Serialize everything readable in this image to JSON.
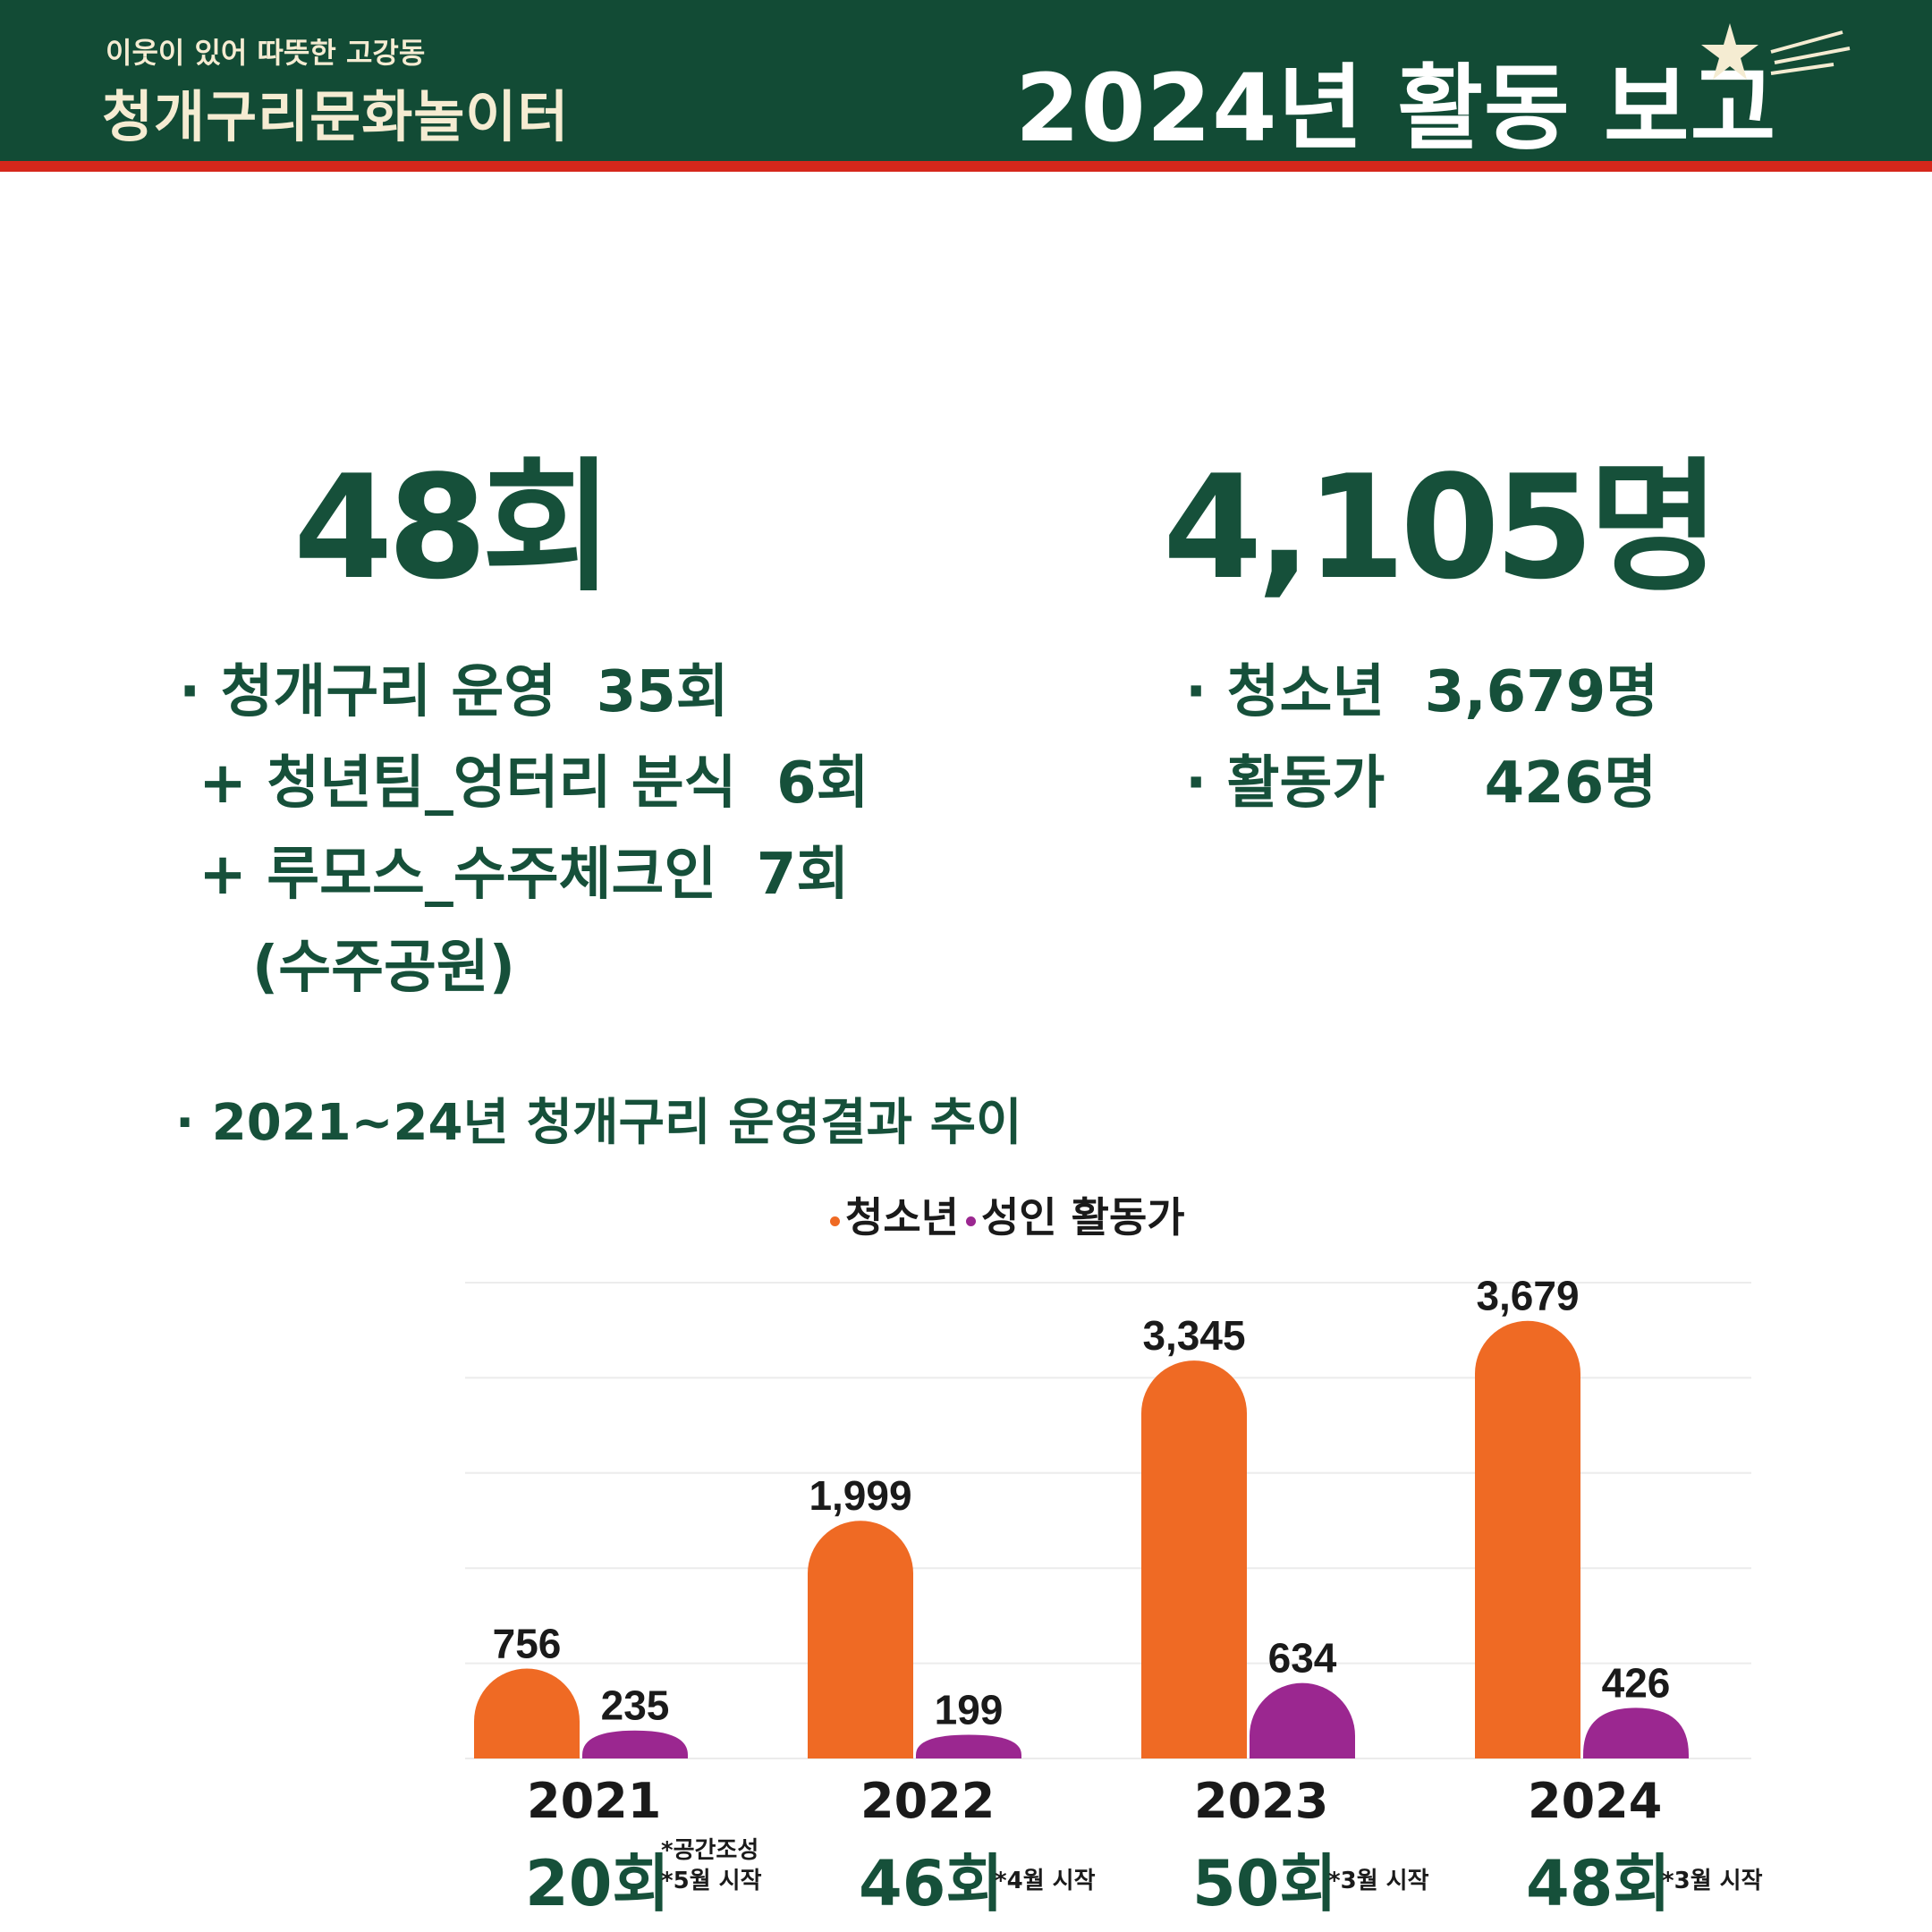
{
  "header": {
    "subtitle": "이웃이 있어 따뜻한 고강동",
    "brand": "청개구리문화놀이터",
    "title": "2024년 활동 보고"
  },
  "summary": {
    "sessions_total": "48회",
    "participants_total": "4,105명",
    "sessions_detail": [
      "· 청개구리 운영  35회",
      " + 청년팀_엉터리 분식  6회",
      " + 루모스_수주체크인  7회",
      "(수주공원)"
    ],
    "participants_detail": [
      "· 청소년  3,679명",
      "· 활동가     426명"
    ]
  },
  "colors": {
    "brand_green": "#124b35",
    "accent_red": "#d5271b",
    "youth_orange": "#ef6a24",
    "adult_purple": "#9b2790"
  },
  "chart_data": {
    "type": "bar",
    "title": "· 2021~24년 청개구리 운영결과 추이",
    "categories": [
      "2021",
      "2022",
      "2023",
      "2024"
    ],
    "series": [
      {
        "name": "청소년",
        "values": [
          756,
          1999,
          3345,
          3679
        ],
        "labels": [
          "756",
          "1,999",
          "3,345",
          "3,679"
        ],
        "color": "#ef6a24"
      },
      {
        "name": "성인 활동가",
        "values": [
          235,
          199,
          634,
          426
        ],
        "labels": [
          "235",
          "199",
          "634",
          "426"
        ],
        "color": "#9b2790"
      }
    ],
    "ylim": [
      0,
      4000
    ],
    "grid": true,
    "legend": "top-center",
    "footer": [
      {
        "year": "2021",
        "count": "20회",
        "note": "*공간조성\n*5월 시작"
      },
      {
        "year": "2022",
        "count": "46회",
        "note": "*4월 시작"
      },
      {
        "year": "2023",
        "count": "50회",
        "note": "*3월 시작"
      },
      {
        "year": "2024",
        "count": "48회",
        "note": "*3월 시작"
      }
    ]
  }
}
